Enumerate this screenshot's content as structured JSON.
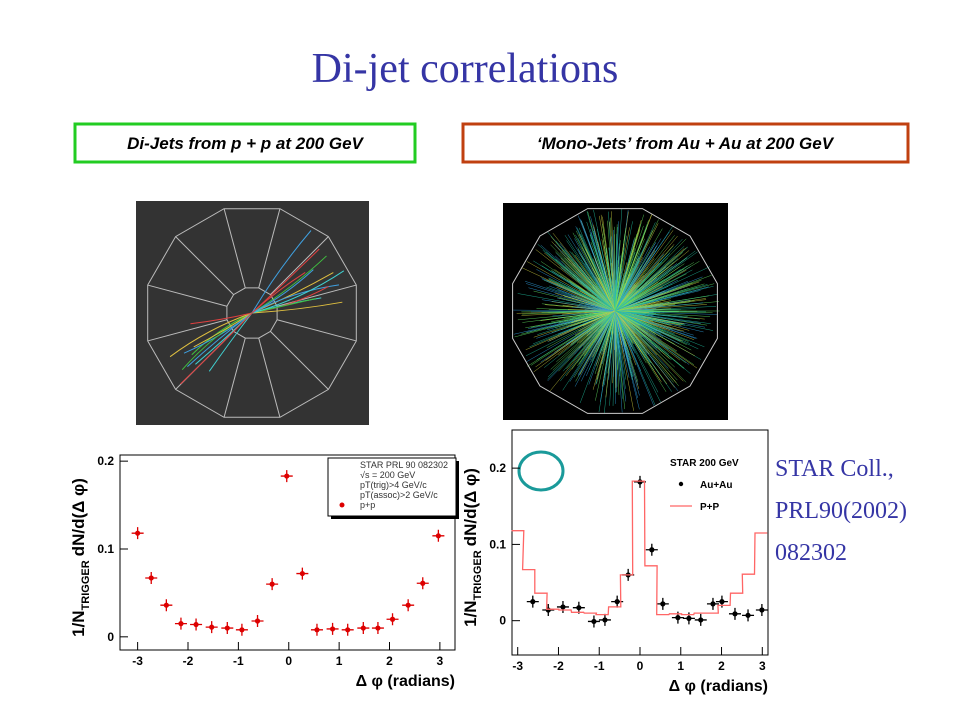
{
  "header": {
    "title": "Di-jet correlations"
  },
  "boxes": [
    "Di-Jets from p + p at 200 GeV",
    "‘Mono-Jets’ from Au + Au at 200 GeV"
  ],
  "citation": [
    "STAR Coll.,",
    "PRL90(2002)",
    "082302"
  ],
  "chart_data": [
    {
      "type": "scatter",
      "x_label": "Δ φ (radians)",
      "y_label": [
        "1/N",
        "TRIGGER",
        "dN/d(Δ φ)"
      ],
      "xlim": [
        -3.35,
        3.3
      ],
      "ylim": [
        -0.015,
        0.207
      ],
      "xticks": [
        -3,
        -2,
        -1,
        0,
        1,
        2,
        3
      ],
      "yticks": [
        0,
        0.1,
        0.2
      ],
      "legend_header": [
        "STAR PRL 90 082302",
        "√s = 200 GeV",
        "pT(trig)>4 GeV/c",
        "pT(assoc)>2 GeV/c"
      ],
      "series": [
        {
          "name": "p+p",
          "color": "#dd0000",
          "mode": "markers",
          "x": [
            -3.0,
            -2.73,
            -2.43,
            -2.14,
            -1.84,
            -1.53,
            -1.22,
            -0.93,
            -0.62,
            -0.33,
            -0.04,
            0.27,
            0.56,
            0.87,
            1.17,
            1.48,
            1.77,
            2.06,
            2.37,
            2.66,
            2.97
          ],
          "values": [
            0.118,
            0.067,
            0.036,
            0.015,
            0.014,
            0.011,
            0.01,
            0.008,
            0.018,
            0.06,
            0.183,
            0.072,
            0.008,
            0.009,
            0.008,
            0.01,
            0.01,
            0.02,
            0.036,
            0.061,
            0.115
          ]
        }
      ]
    },
    {
      "type": "scatter",
      "x_label": "Δ φ (radians)",
      "y_label": [
        "1/N",
        "TRIGGER",
        "dN/d(Δ φ)"
      ],
      "xlim": [
        -3.14,
        3.14
      ],
      "ylim": [
        -0.045,
        0.25
      ],
      "xticks": [
        -3,
        -2,
        -1,
        0,
        1,
        2,
        3
      ],
      "yticks": [
        0,
        0.1,
        0.2
      ],
      "legend_header": [
        "STAR 200 GeV"
      ],
      "series": [
        {
          "name": "Au+Au",
          "color": "#000000",
          "mode": "markers",
          "x": [
            -2.63,
            -2.25,
            -1.89,
            -1.5,
            -1.13,
            -0.86,
            -0.56,
            -0.29,
            0.0,
            0.29,
            0.56,
            0.93,
            1.2,
            1.49,
            1.79,
            2.01,
            2.33,
            2.65,
            2.99
          ],
          "values": [
            0.025,
            0.014,
            0.018,
            0.017,
            -0.001,
            0.001,
            0.025,
            0.06,
            0.182,
            0.093,
            0.022,
            0.004,
            0.003,
            0.001,
            0.022,
            0.025,
            0.009,
            0.007,
            0.014
          ]
        },
        {
          "name": "P+P",
          "color": "#ff6666",
          "mode": "step",
          "x": [
            -3.0,
            -2.73,
            -2.43,
            -2.14,
            -1.84,
            -1.53,
            -1.22,
            -0.93,
            -0.62,
            -0.33,
            -0.04,
            0.27,
            0.56,
            0.87,
            1.17,
            1.48,
            1.77,
            2.06,
            2.37,
            2.66,
            2.97
          ],
          "values": [
            0.118,
            0.067,
            0.036,
            0.015,
            0.014,
            0.011,
            0.01,
            0.008,
            0.018,
            0.06,
            0.183,
            0.072,
            0.008,
            0.009,
            0.008,
            0.01,
            0.01,
            0.02,
            0.036,
            0.061,
            0.115
          ]
        }
      ]
    }
  ]
}
